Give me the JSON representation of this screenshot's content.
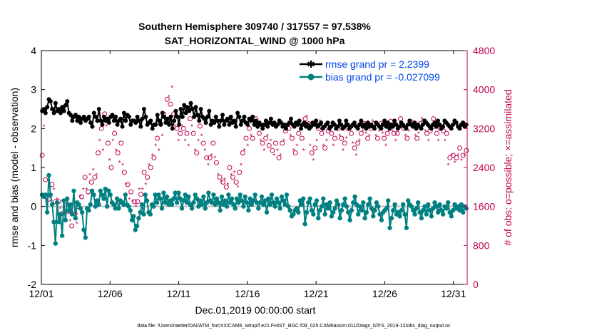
{
  "chart_data": {
    "type": "line",
    "title": "Southern Hemisphere 309740 / 317557 = 97.538%",
    "subtitle": "SAT_HORIZONTAL_WIND @ 1000 hPa",
    "xlabel": "Dec.01,2019 00:00:00 start",
    "ylabel": "rmse and bias (model - observation)",
    "ylabel_right": "# of obs: o=possible; ×=assimilated",
    "footnote": "data file: /Users/raeder/DAI/ATM_forcXX/CAM6_setup/f.e21.FHIST_BGC.f09_025.CAM6assim.011/Diags_NTrS_2019-12/obs_diag_output.nc",
    "xlim": [
      1,
      32
    ],
    "x_ticks": [
      1,
      6,
      11,
      16,
      21,
      26,
      31
    ],
    "x_tick_labels": [
      "12/01",
      "12/06",
      "12/11",
      "12/16",
      "12/21",
      "12/26",
      "12/31"
    ],
    "ylim": [
      -2,
      4
    ],
    "y_ticks": [
      -2,
      -1,
      0,
      1,
      2,
      3,
      4
    ],
    "y_tick_labels": [
      "-2",
      "-1",
      "0",
      "1",
      "2",
      "3",
      "4"
    ],
    "ylim_right": [
      0,
      4800
    ],
    "y_right_ticks": [
      0,
      800,
      1600,
      2400,
      3200,
      4000,
      4800
    ],
    "y_right_tick_labels": [
      "0",
      "800",
      "1600",
      "2400",
      "3200",
      "4000",
      "4800"
    ],
    "legend_position": "top-right",
    "series": [
      {
        "name": "rmse grand pr = 2.2399",
        "axis": "left",
        "color": "#000000",
        "marker": "star",
        "values": [
          2.45,
          2.5,
          2.4,
          2.55,
          2.75,
          2.7,
          2.5,
          2.4,
          2.65,
          2.45,
          2.5,
          2.4,
          2.55,
          2.45,
          2.6,
          2.7,
          2.4,
          2.35,
          2.2,
          2.3,
          2.35,
          2.2,
          2.3,
          2.15,
          2.25,
          2.3,
          2.2,
          2.25,
          2.3,
          2.15,
          2.05,
          2.4,
          2.3,
          2.2,
          2.5,
          2.2,
          2.1,
          2.3,
          2.2,
          2.25,
          2.15,
          2.3,
          2.35,
          2.2,
          2.3,
          2.1,
          2.2,
          2.25,
          2.05,
          2.4,
          2.2,
          2.35,
          2.3,
          2.1,
          2.2,
          2.2,
          2.15,
          2.3,
          2.2,
          2.05,
          2.25,
          2.5,
          2.3,
          2.1,
          2.15,
          2.2,
          2.0,
          2.1,
          2.1,
          2.35,
          2.2,
          2.1,
          2.4,
          2.3,
          2.15,
          2.25,
          2.1,
          2.3,
          2.0,
          2.2,
          2.45,
          2.3,
          2.1,
          2.5,
          2.3,
          2.6,
          2.4,
          2.55,
          2.45,
          2.65,
          2.5,
          2.3,
          2.55,
          2.35,
          2.2,
          2.5,
          2.3,
          2.25,
          2.15,
          2.3,
          2.45,
          2.1,
          2.2,
          2.15,
          2.3,
          2.2,
          2.05,
          2.2,
          2.35,
          2.1,
          2.2,
          2.25,
          2.1,
          2.3,
          2.15,
          2.2,
          2.05,
          2.4,
          2.3,
          2.1,
          2.2,
          2.3,
          2.15,
          2.1,
          2.25,
          2.2,
          2.3,
          2.1,
          2.2,
          2.05,
          2.15,
          2.1,
          2.0,
          2.1,
          2.2,
          2.05,
          2.15,
          2.25,
          2.1,
          2.15,
          2.05,
          2.1,
          2.2,
          2.15,
          2.05,
          2.1,
          2.0,
          2.1,
          2.15,
          2.25,
          2.1,
          2.05,
          2.15,
          2.1,
          2.2,
          2.0,
          2.1,
          2.15,
          2.05,
          2.1,
          2.0,
          2.05,
          2.15,
          2.1,
          2.2,
          2.05,
          2.1,
          2.15,
          2.0,
          2.05,
          2.1,
          2.15,
          2.0,
          2.05,
          2.15,
          2.1,
          2.0,
          2.05,
          2.2,
          2.1,
          2.0,
          2.05,
          2.2,
          2.1,
          2.0,
          2.05,
          2.1,
          2.15,
          2.05,
          2.0,
          2.1,
          2.2,
          2.05,
          2.1,
          2.0,
          2.15,
          2.05,
          2.1,
          2.05,
          2.0,
          2.15,
          2.1,
          2.05,
          2.0,
          2.1,
          2.2,
          2.05,
          2.15,
          2.0,
          2.1,
          2.05,
          2.2,
          2.1,
          2.0,
          2.05,
          2.15,
          2.1,
          2.05,
          2.0,
          2.1,
          2.2,
          2.1,
          2.05,
          2.15,
          2.0,
          2.1,
          2.05,
          2.0,
          2.1,
          2.2,
          2.15,
          2.1,
          2.05,
          2.0,
          2.1,
          2.15,
          2.05,
          2.2,
          2.1,
          2.0,
          2.05,
          2.2,
          2.15,
          2.1,
          2.05,
          2.0,
          2.1,
          2.2,
          2.15,
          2.05,
          2.0,
          2.1,
          2.15,
          2.05,
          2.1
        ]
      },
      {
        "name": "bias grand pr = -0.027099",
        "axis": "left",
        "color": "#008080",
        "marker": "circle",
        "values": [
          0.3,
          0.25,
          0.3,
          -0.15,
          0.8,
          0.3,
          0.05,
          -0.4,
          -0.95,
          0.1,
          -0.4,
          -0.2,
          -0.75,
          0.15,
          -0.35,
          0.2,
          -0.1,
          0.05,
          -0.2,
          0.4,
          -0.3,
          0.1,
          0.05,
          -0.05,
          -0.15,
          -0.6,
          -0.8,
          -0.05,
          -0.1,
          0.05,
          0.4,
          0.3,
          0.0,
          0.15,
          0.05,
          0.4,
          0.3,
          0.2,
          0.45,
          0.0,
          0.4,
          0.3,
          0.1,
          0.05,
          -0.05,
          0.2,
          -0.05,
          0.15,
          0.1,
          0.05,
          0.3,
          0.05,
          0.0,
          -0.1,
          -0.35,
          -0.25,
          -0.6,
          -0.5,
          -0.3,
          -0.15,
          0.05,
          -0.2,
          0.3,
          0.15,
          -0.15,
          -0.2,
          0.05,
          0.0,
          0.3,
          0.1,
          0.3,
          0.2,
          -0.05,
          0.35,
          0.1,
          0.25,
          0.05,
          0.15,
          0.05,
          0.2,
          0.35,
          0.1,
          0.35,
          0.2,
          -0.05,
          0.15,
          0.3,
          0.1,
          0.25,
          0.05,
          -0.05,
          0.1,
          0.3,
          0.2,
          0.0,
          0.15,
          0.05,
          0.25,
          -0.05,
          0.1,
          0.35,
          0.15,
          0.1,
          0.3,
          0.05,
          0.2,
          0.1,
          -0.1,
          0.25,
          0.05,
          0.15,
          0.0,
          0.3,
          0.1,
          0.2,
          0.05,
          -0.05,
          0.2,
          0.1,
          0.3,
          0.15,
          0.0,
          0.25,
          0.1,
          -0.1,
          0.2,
          0.05,
          0.15,
          0.3,
          0.1,
          -0.05,
          0.1,
          0.25,
          0.05,
          0.15,
          -0.15,
          0.2,
          0.05,
          0.3,
          0.1,
          0.0,
          0.2,
          0.1,
          -0.05,
          0.25,
          0.15,
          0.05,
          0.3,
          0.0,
          -0.1,
          -0.25,
          -0.2,
          -0.1,
          -0.05,
          -0.15,
          0.15,
          0.05,
          0.2,
          -0.45,
          -0.15,
          0.1,
          0.2,
          -0.1,
          -0.2,
          0.05,
          0.15,
          -0.3,
          -0.1,
          0.0,
          0.2,
          -0.2,
          0.05,
          -0.05,
          0.1,
          -0.25,
          -0.15,
          -0.05,
          0.15,
          0.05,
          -0.3,
          -0.1,
          0.05,
          0.2,
          0.0,
          -0.15,
          -0.35,
          -0.1,
          0.1,
          0.25,
          0.05,
          -0.2,
          0.0,
          -0.1,
          0.1,
          -0.3,
          -0.15,
          0.05,
          0.2,
          -0.05,
          -0.25,
          -0.1,
          0.1,
          0.0,
          -0.2,
          -0.35,
          -0.15,
          -0.1,
          -0.05,
          0.15,
          -0.55,
          -0.3,
          -0.1,
          0.05,
          -0.2,
          -0.15,
          -0.25,
          -0.1,
          0.05,
          -0.2,
          -0.55,
          0.15,
          0.05,
          0.0,
          -0.1,
          -0.2,
          -0.05,
          0.1,
          -0.15,
          -0.3,
          -0.1,
          0.0,
          -0.2,
          0.05,
          -0.1,
          -0.25,
          -0.05,
          0.1,
          0.0,
          -0.15,
          0.05,
          -0.1,
          -0.2,
          0.0,
          -0.05,
          0.1,
          -0.15,
          -0.25,
          -0.1,
          0.05,
          -0.05,
          0.0,
          -0.1,
          0.05,
          -0.15,
          0.0,
          -0.05
        ]
      },
      {
        "name": "obs possible",
        "axis": "right",
        "color": "#c0004f",
        "marker": "open-circle",
        "values": [
          2650,
          3300,
          2150,
          1500,
          1750,
          1850,
          2050,
          2000,
          1700,
          1800,
          1700,
          1600,
          1450,
          1600,
          1700,
          1650,
          1500,
          1350,
          1200,
          1500,
          1450,
          1300,
          1600,
          1850,
          1800,
          2000,
          2200,
          2000,
          1900,
          2300,
          2100,
          2400,
          2200,
          2300,
          2700,
          3000,
          3200,
          2800,
          3500,
          3300,
          2900,
          2600,
          2400,
          3000,
          3100,
          2800,
          2700,
          2550,
          2900,
          2500,
          2300,
          2100,
          2050,
          1800,
          1900,
          1750,
          1700,
          1650,
          1700,
          2000,
          1850,
          2000,
          2300,
          2100,
          2200,
          2500,
          2400,
          2700,
          2600,
          2900,
          3000,
          2800,
          3300,
          3100,
          3500,
          3400,
          3800,
          3900,
          3700,
          4100,
          3500,
          3300,
          3200,
          3000,
          3100,
          3300,
          3200,
          3000,
          3100,
          2900,
          3400,
          3300,
          3100,
          2800,
          2700,
          3000,
          3250,
          3100,
          2900,
          2800,
          2600,
          2500,
          2600,
          2700,
          2900,
          2650,
          2500,
          2300,
          2200,
          2150,
          2100,
          2200,
          2000,
          2100,
          2400,
          2300,
          2200,
          2350,
          2100,
          2050,
          2300,
          2500,
          2700,
          2800,
          3000,
          2900,
          3200,
          3100,
          3000,
          3300,
          3400,
          3250,
          3100,
          3000,
          2900,
          2800,
          3000,
          3100,
          2850,
          3000,
          2750,
          2700,
          2900,
          2800,
          2600,
          2700,
          2900,
          3000,
          3150,
          3300,
          3200,
          3100,
          3000,
          2800,
          2700,
          2900,
          3100,
          3300,
          3000,
          2800,
          3400,
          3500,
          3300,
          2900,
          2700,
          2600,
          2800,
          3000,
          3200,
          3400,
          3100,
          2900,
          2800,
          3000,
          3150,
          3200,
          3100,
          2900,
          3000,
          3300,
          3200,
          3100,
          3000,
          2800,
          2900,
          3050,
          3200,
          3300,
          3100,
          2950,
          2800,
          2700,
          2900,
          3000,
          3100,
          3200,
          3300,
          3150,
          3000,
          3100,
          3200,
          3400,
          3300,
          3100,
          3000,
          3200,
          3300,
          3150,
          3000,
          2900,
          3100,
          3200,
          3350,
          3200,
          3100,
          3000,
          3100,
          3250,
          3400,
          3300,
          3200,
          3100,
          3000,
          3200,
          3300,
          3400,
          3250,
          3100,
          3000,
          3150,
          3300,
          3450,
          3350,
          3200,
          3100,
          3000,
          3150,
          3300,
          3400,
          3250,
          3100,
          3000,
          3200,
          3300,
          3150,
          3000,
          3100,
          2500,
          2600,
          2700,
          2650,
          2550,
          2600,
          2700,
          2800,
          2600,
          2650,
          2700,
          2750
        ]
      },
      {
        "name": "obs assimilated",
        "axis": "right",
        "color": "#c0004f",
        "marker": "asterisk",
        "values": [
          2600,
          3250,
          2100,
          1450,
          1700,
          1800,
          2000,
          1950,
          1650,
          1750,
          1650,
          1550,
          1400,
          1550,
          1650,
          1600,
          1450,
          1300,
          1150,
          1450,
          1400,
          1250,
          1550,
          1800,
          1750,
          1950,
          2150,
          1950,
          1850,
          2250,
          2050,
          2350,
          2150,
          2250,
          2650,
          2950,
          3150,
          2750,
          3450,
          3250,
          2850,
          2550,
          2350,
          2950,
          3050,
          2750,
          2650,
          2500,
          2850,
          2450,
          2250,
          2050,
          2000,
          1750,
          1850,
          1700,
          1650,
          1600,
          1650,
          1950,
          1800,
          1950,
          2250,
          2050,
          2150,
          2450,
          2350,
          2650,
          2550,
          2850,
          2950,
          2750,
          3250,
          3050,
          3450,
          3350,
          3750,
          3850,
          3650,
          4050,
          3450,
          3250,
          3150,
          2950,
          3050,
          3250,
          3150,
          2950,
          3050,
          2850,
          3350,
          3250,
          3050,
          2750,
          2650,
          2950,
          3200,
          3050,
          2850,
          2750,
          2550,
          2450,
          2550,
          2650,
          2850,
          2600,
          2450,
          2250,
          2150,
          2100,
          2050,
          2150,
          1950,
          2050,
          2350,
          2250,
          2150,
          2300,
          2050,
          2000,
          2250,
          2450,
          2650,
          2750,
          2950,
          2850,
          3150,
          3050,
          2950,
          3250,
          3350,
          3200,
          3050,
          2950,
          2850,
          2750,
          2950,
          3050,
          2800,
          2950,
          2700,
          2650,
          2850,
          2750,
          2550,
          2650,
          2850,
          2950,
          3100,
          3250,
          3150,
          3050,
          2950,
          2750,
          2650,
          2850,
          3050,
          3250,
          2950,
          2750,
          3350,
          3450,
          3250,
          2850,
          2650,
          2550,
          2750,
          2950,
          3150,
          3350,
          3050,
          2850,
          2750,
          2950,
          3100,
          3150,
          3050,
          2850,
          2950,
          3250,
          3150,
          3050,
          2950,
          2750,
          2850,
          3000,
          3150,
          3250,
          3050,
          2900,
          2750,
          2650,
          2850,
          2950,
          3050,
          3150,
          3250,
          3100,
          2950,
          3050,
          3150,
          3350,
          3250,
          3050,
          2950,
          3150,
          3250,
          3100,
          2950,
          2850,
          3050,
          3150,
          3300,
          3150,
          3050,
          2950,
          3050,
          3200,
          3350,
          3250,
          3150,
          3050,
          2950,
          3150,
          3250,
          3350,
          3200,
          3050,
          2950,
          3100,
          3250,
          3400,
          3300,
          3150,
          3050,
          2950,
          3100,
          3250,
          3350,
          3200,
          3050,
          2950,
          3150,
          3250,
          3100,
          2950,
          3050,
          2450,
          2550,
          2650,
          2600,
          2500,
          2550,
          2650,
          2750,
          2550,
          2600,
          2650,
          2700
        ]
      }
    ]
  }
}
